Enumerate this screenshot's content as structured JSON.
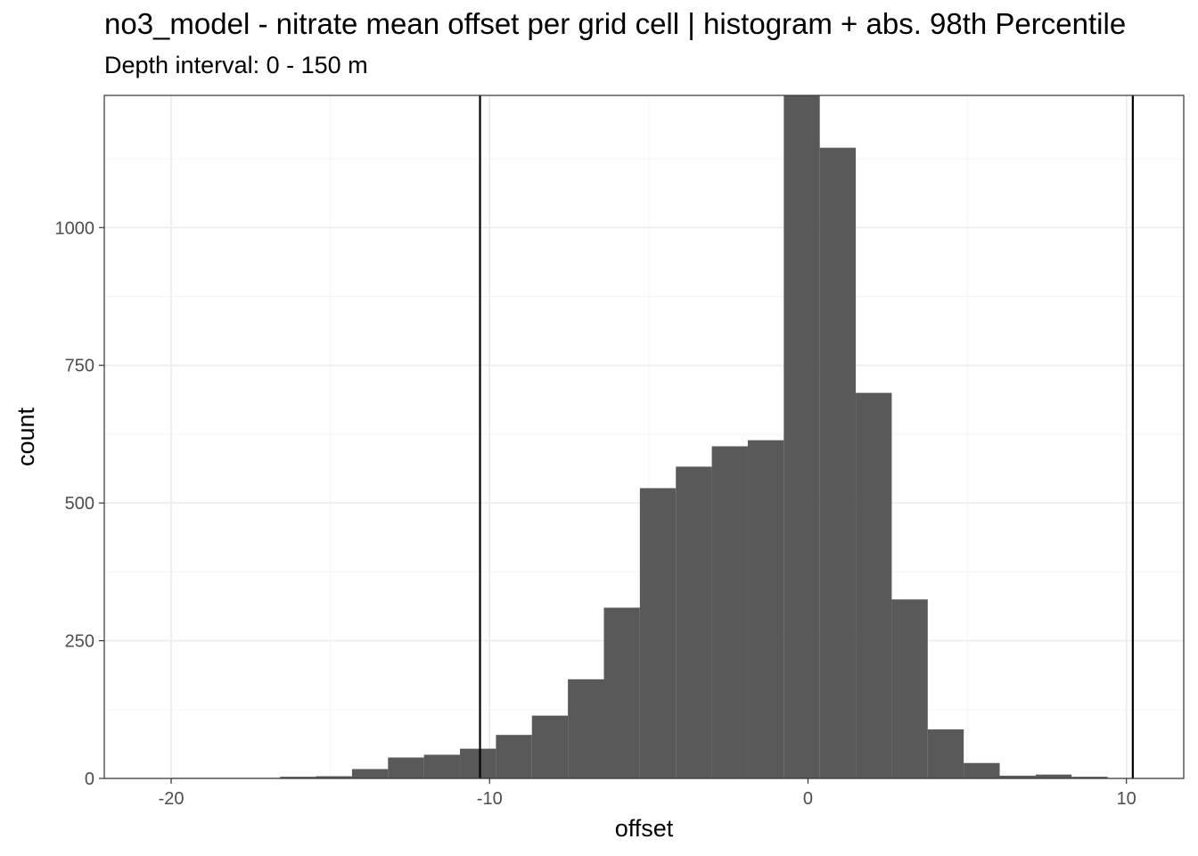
{
  "chart_data": {
    "type": "bar",
    "title": "no3_model  -  nitrate mean offset per grid cell | histogram + abs. 98th Percentile",
    "subtitle": "Depth interval: 0 - 150 m",
    "xlabel": "offset",
    "ylabel": "count",
    "xlim": [
      -22.1,
      11.8
    ],
    "ylim": [
      0,
      1240
    ],
    "x_ticks": [
      -20,
      -10,
      0,
      10
    ],
    "x_tick_labels": [
      "-20",
      "-10",
      "0",
      "10"
    ],
    "y_ticks": [
      0,
      250,
      500,
      750,
      1000
    ],
    "y_tick_labels": [
      "0",
      "250",
      "500",
      "750",
      "1000"
    ],
    "grid": true,
    "bar_color": "#595959",
    "bins": {
      "left_edges": [
        -19.97,
        -18.84,
        -17.71,
        -16.58,
        -15.45,
        -14.32,
        -13.19,
        -12.06,
        -10.93,
        -9.8,
        -8.67,
        -7.54,
        -6.41,
        -5.28,
        -4.15,
        -3.02,
        -1.89,
        -0.76,
        0.37,
        1.5,
        2.63,
        3.76,
        4.89,
        6.02,
        7.15,
        8.28,
        9.41
      ],
      "width": 1.13,
      "counts": [
        1,
        1,
        1,
        3,
        4,
        17,
        38,
        43,
        54,
        79,
        114,
        180,
        310,
        527,
        566,
        603,
        614,
        1240,
        1145,
        700,
        325,
        89,
        28,
        5,
        7,
        3,
        0
      ]
    },
    "vlines": [
      -10.3,
      10.2
    ]
  }
}
